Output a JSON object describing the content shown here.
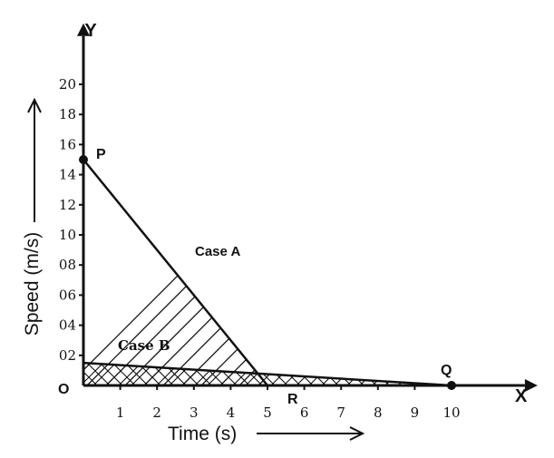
{
  "chart_data": {
    "type": "line",
    "xlabel": "Time (s)",
    "ylabel": "Speed (m/s)",
    "x_axis_letter": "X",
    "y_axis_letter": "Y",
    "origin_label": "O",
    "xlim": [
      0,
      11.5
    ],
    "ylim": [
      0,
      22
    ],
    "x_ticks": [
      "1",
      "2",
      "3",
      "4",
      "5",
      "6",
      "7",
      "8",
      "9",
      "10"
    ],
    "y_ticks": [
      {
        "value": 2,
        "label": "02"
      },
      {
        "value": 4,
        "label": "04"
      },
      {
        "value": 6,
        "label": "06"
      },
      {
        "value": 8,
        "label": "08"
      },
      {
        "value": 10,
        "label": "10"
      },
      {
        "value": 12,
        "label": "12"
      },
      {
        "value": 14,
        "label": "14"
      },
      {
        "value": 16,
        "label": "16"
      },
      {
        "value": 18,
        "label": "18"
      },
      {
        "value": 20,
        "label": "20"
      }
    ],
    "series": [
      {
        "name": "Case A",
        "x": [
          0,
          5
        ],
        "y": [
          15,
          0
        ],
        "fill": "diagonal-hatch"
      },
      {
        "name": "Case B",
        "x": [
          0,
          10
        ],
        "y": [
          1.5,
          0
        ],
        "fill": "cross-hatch"
      }
    ],
    "points": [
      {
        "label": "P",
        "x": 0,
        "y": 15
      },
      {
        "label": "Q",
        "x": 10,
        "y": 0
      },
      {
        "label": "R",
        "x": 5,
        "y": 0
      }
    ],
    "colors": {
      "ink": "#111111",
      "background": "#ffffff"
    }
  }
}
